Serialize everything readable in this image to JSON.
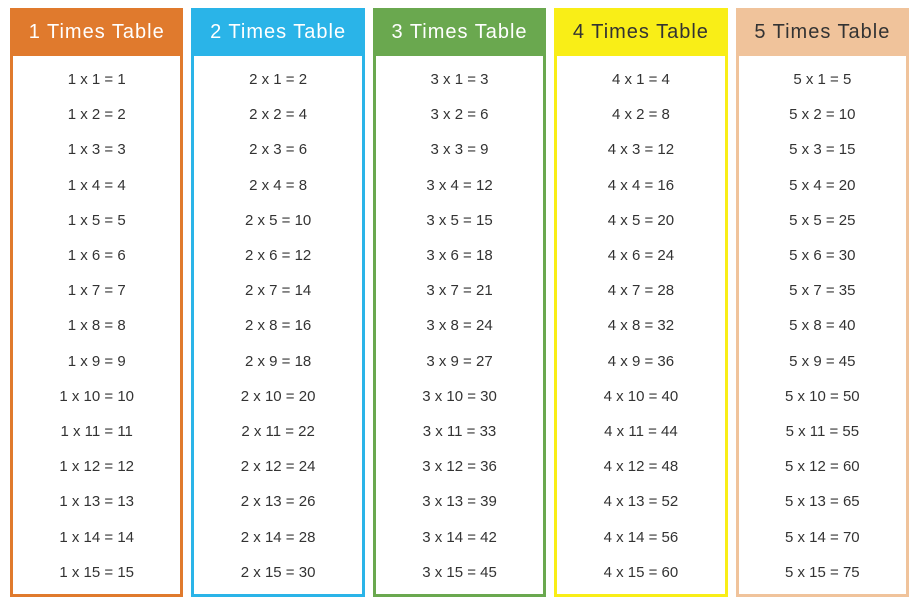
{
  "infographic": {
    "type": "infographic",
    "background_color": "#ffffff",
    "row_text_color": "#333333",
    "row_fontsize": 15,
    "header_fontsize": 20,
    "border_width": 3,
    "tables": [
      {
        "title": "1  Times  Table",
        "border_color": "#e07a2d",
        "header_bg": "#e07a2d",
        "header_text_color": "#ffffff",
        "base": 1,
        "rows": [
          "1 x 1 = 1",
          "1 x 2 = 2",
          "1 x 3 = 3",
          "1 x 4 = 4",
          "1 x 5 = 5",
          "1 x 6 = 6",
          "1 x 7 = 7",
          "1 x 8 = 8",
          "1 x 9 = 9",
          "1 x 10 = 10",
          "1 x 11 = 11",
          "1 x 12 = 12",
          "1 x 13 = 13",
          "1 x 14 = 14",
          "1 x 15 = 15"
        ]
      },
      {
        "title": "2  Times  Table",
        "border_color": "#2ab4e8",
        "header_bg": "#2ab4e8",
        "header_text_color": "#ffffff",
        "base": 2,
        "rows": [
          "2 x 1 = 2",
          "2 x 2 = 4",
          "2 x 3 = 6",
          "2 x 4 = 8",
          "2 x 5 = 10",
          "2 x 6 = 12",
          "2 x 7 = 14",
          "2 x 8 = 16",
          "2 x 9 = 18",
          "2 x 10 = 20",
          "2 x 11 = 22",
          "2 x 12 = 24",
          "2 x 13 = 26",
          "2 x 14 = 28",
          "2 x 15 = 30"
        ]
      },
      {
        "title": "3  Times  Table",
        "border_color": "#6aa84f",
        "header_bg": "#6aa84f",
        "header_text_color": "#ffffff",
        "base": 3,
        "rows": [
          "3 x 1 = 3",
          "3 x 2 = 6",
          "3 x 3 = 9",
          "3 x 4 = 12",
          "3 x 5 = 15",
          "3 x 6 = 18",
          "3 x 7 = 21",
          "3 x 8 = 24",
          "3 x 9 = 27",
          "3 x 10 = 30",
          "3 x 11 = 33",
          "3 x 12 = 36",
          "3 x 13 = 39",
          "3 x 14 = 42",
          "3 x 15 = 45"
        ]
      },
      {
        "title": "4  Times  Table",
        "border_color": "#f9ee17",
        "header_bg": "#f9ee17",
        "header_text_color": "#333333",
        "base": 4,
        "rows": [
          "4 x 1 = 4",
          "4 x 2 = 8",
          "4 x 3 = 12",
          "4 x 4 = 16",
          "4 x 5 = 20",
          "4 x 6 = 24",
          "4 x 7 = 28",
          "4 x 8 = 32",
          "4 x 9 = 36",
          "4 x 10 = 40",
          "4 x 11 = 44",
          "4 x 12 = 48",
          "4 x 13 = 52",
          "4 x 14 = 56",
          "4 x 15 = 60"
        ]
      },
      {
        "title": "5  Times  Table",
        "border_color": "#f0c39b",
        "header_bg": "#f0c39b",
        "header_text_color": "#333333",
        "base": 5,
        "rows": [
          "5 x 1 = 5",
          "5 x 2 = 10",
          "5 x 3 = 15",
          "5 x 4 = 20",
          "5 x 5 = 25",
          "5 x 6 = 30",
          "5 x 7 = 35",
          "5 x 8 = 40",
          "5 x 9 = 45",
          "5 x 10 = 50",
          "5 x 11 = 55",
          "5 x 12 = 60",
          "5 x 13 = 65",
          "5 x 14 = 70",
          "5 x 15 = 75"
        ]
      }
    ]
  }
}
